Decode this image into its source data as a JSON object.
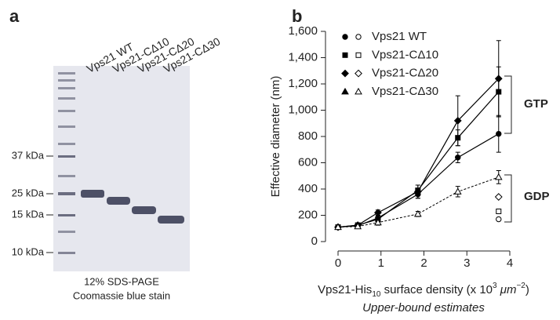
{
  "panel_a": {
    "letter": "a",
    "lanes": [
      "Vps21 WT",
      "Vps21-CΔ10",
      "Vps21-CΔ20",
      "Vps21-CΔ30"
    ],
    "markers": [
      "37 kDa",
      "25 kDa",
      "15 kDa",
      "10 kDa"
    ],
    "caption": [
      "12% SDS-PAGE",
      "Coomassie blue stain"
    ]
  },
  "chart_data": {
    "type": "line",
    "letter": "b",
    "ylabel": "Effective diameter (nm)",
    "xlabel": [
      "Vps21-His",
      "10",
      " surface density (x 10",
      "3",
      " μm",
      "−2",
      ")"
    ],
    "subtitle": "Upper-bound estimates",
    "x": [
      0,
      0.46,
      0.93,
      1.86,
      2.79,
      3.74
    ],
    "xlim": [
      0,
      4
    ],
    "xticks": [
      0,
      1,
      2,
      3,
      4
    ],
    "ylim": [
      0,
      1600
    ],
    "yticks": [
      0,
      200,
      400,
      600,
      800,
      {
        "value": 1000,
        "label": "1,000"
      },
      {
        "value": 1200,
        "label": "1,200"
      },
      {
        "value": 1400,
        "label": "1,400"
      },
      {
        "value": 1600,
        "label": "1,600"
      }
    ],
    "color": "#000000",
    "series": [
      {
        "name": "Vps21 WT",
        "marker": "circle",
        "gtp": [
          110,
          120,
          180,
          360,
          640,
          820
        ],
        "gtp_errors": [
          10,
          10,
          20,
          30,
          40,
          140
        ],
        "gdp": [
          null,
          null,
          null,
          null,
          null,
          170
        ]
      },
      {
        "name": "Vps21-CΔ10",
        "marker": "square",
        "gtp": [
          110,
          125,
          170,
          390,
          790,
          1140
        ],
        "gtp_errors": [
          10,
          10,
          20,
          40,
          60,
          190
        ],
        "gdp": [
          null,
          null,
          null,
          null,
          null,
          230
        ]
      },
      {
        "name": "Vps21-CΔ20",
        "marker": "diamond",
        "gtp": [
          110,
          125,
          220,
          380,
          920,
          1240
        ],
        "gtp_errors": [
          10,
          10,
          20,
          50,
          190,
          290
        ],
        "gdp": [
          null,
          null,
          null,
          null,
          null,
          340
        ]
      },
      {
        "name": "Vps21-CΔ30",
        "marker": "triangle",
        "gdp": [
          110,
          115,
          145,
          210,
          380,
          490
        ],
        "gdp_errors": [
          10,
          10,
          20,
          20,
          40,
          50
        ]
      }
    ],
    "annotations": [
      "GTP",
      "GDP"
    ]
  }
}
